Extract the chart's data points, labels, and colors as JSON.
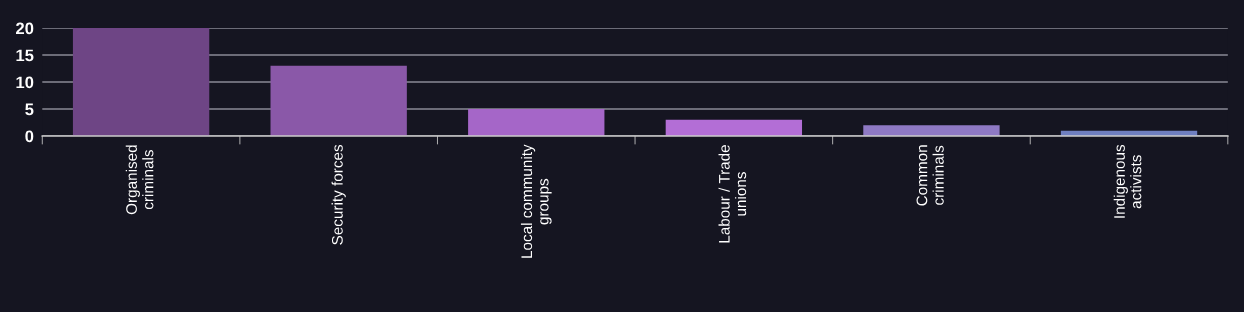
{
  "chart_data": {
    "type": "bar",
    "categories": [
      "Organised\ncriminals",
      "Security forces",
      "Local community\ngroups",
      "Labour / Trade\nunions",
      "Common\ncriminals",
      "Indigenous\nactivists"
    ],
    "values": [
      20,
      13,
      5,
      3,
      2,
      1
    ],
    "colors": [
      "#6e4585",
      "#8a58a8",
      "#a566c8",
      "#b36ed6",
      "#8e79c4",
      "#6f7fc0"
    ],
    "ylim": [
      0,
      20
    ],
    "yticks": [
      0,
      5,
      10,
      15,
      20
    ],
    "grid": "y"
  }
}
